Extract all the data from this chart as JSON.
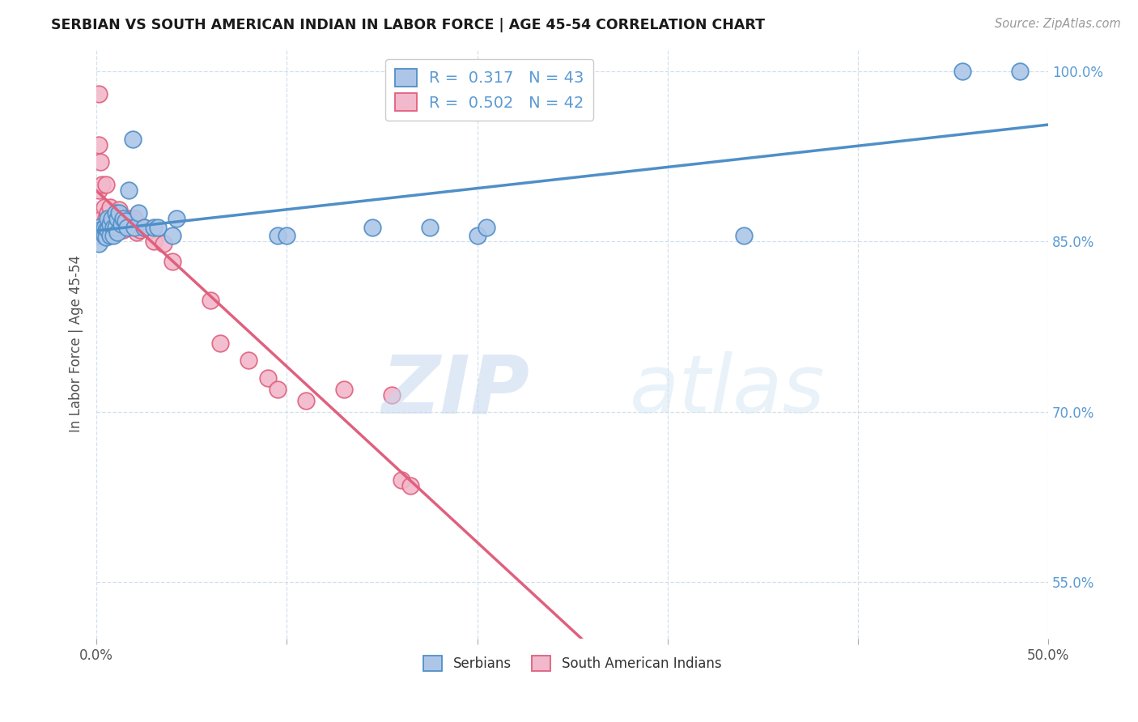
{
  "title": "SERBIAN VS SOUTH AMERICAN INDIAN IN LABOR FORCE | AGE 45-54 CORRELATION CHART",
  "source": "Source: ZipAtlas.com",
  "ylabel": "In Labor Force | Age 45-54",
  "xlim": [
    0.0,
    0.5
  ],
  "ylim": [
    0.5,
    1.02
  ],
  "yticks": [
    0.55,
    0.7,
    0.85,
    1.0
  ],
  "ytick_labels": [
    "55.0%",
    "70.0%",
    "85.0%",
    "100.0%"
  ],
  "xticks": [
    0.0,
    0.1,
    0.2,
    0.3,
    0.4,
    0.5
  ],
  "xtick_labels": [
    "0.0%",
    "",
    "",
    "",
    "",
    "50.0%"
  ],
  "legend_serbian_R": "0.317",
  "legend_serbian_N": "43",
  "legend_sai_R": "0.502",
  "legend_sai_N": "42",
  "serbian_color": "#adc6e8",
  "sai_color": "#f2b8cb",
  "serbian_line_color": "#4f8fc7",
  "sai_line_color": "#e0607e",
  "watermark_zip": "ZIP",
  "watermark_atlas": "atlas",
  "serbian_x": [
    0.001,
    0.001,
    0.001,
    0.002,
    0.003,
    0.004,
    0.004,
    0.005,
    0.005,
    0.006,
    0.006,
    0.007,
    0.007,
    0.008,
    0.009,
    0.009,
    0.01,
    0.01,
    0.011,
    0.011,
    0.012,
    0.013,
    0.014,
    0.015,
    0.016,
    0.017,
    0.019,
    0.02,
    0.022,
    0.025,
    0.03,
    0.032,
    0.04,
    0.042,
    0.095,
    0.1,
    0.145,
    0.175,
    0.2,
    0.205,
    0.34,
    0.455,
    0.485
  ],
  "serbian_y": [
    0.862,
    0.855,
    0.848,
    0.86,
    0.858,
    0.862,
    0.855,
    0.86,
    0.854,
    0.87,
    0.86,
    0.865,
    0.855,
    0.87,
    0.862,
    0.855,
    0.875,
    0.862,
    0.87,
    0.858,
    0.875,
    0.865,
    0.87,
    0.868,
    0.862,
    0.895,
    0.94,
    0.862,
    0.875,
    0.862,
    0.862,
    0.862,
    0.855,
    0.87,
    0.855,
    0.855,
    0.862,
    0.862,
    0.855,
    0.862,
    0.855,
    1.0,
    1.0
  ],
  "sai_x": [
    0.001,
    0.001,
    0.001,
    0.002,
    0.003,
    0.003,
    0.004,
    0.005,
    0.005,
    0.006,
    0.006,
    0.007,
    0.008,
    0.009,
    0.01,
    0.011,
    0.012,
    0.013,
    0.014,
    0.015,
    0.016,
    0.017,
    0.018,
    0.019,
    0.02,
    0.021,
    0.023,
    0.025,
    0.028,
    0.03,
    0.035,
    0.04,
    0.06,
    0.065,
    0.08,
    0.09,
    0.095,
    0.11,
    0.13,
    0.155,
    0.16,
    0.165
  ],
  "sai_y": [
    0.98,
    0.935,
    0.895,
    0.92,
    0.9,
    0.87,
    0.88,
    0.9,
    0.87,
    0.875,
    0.86,
    0.88,
    0.865,
    0.87,
    0.865,
    0.87,
    0.878,
    0.865,
    0.86,
    0.87,
    0.865,
    0.87,
    0.862,
    0.868,
    0.87,
    0.858,
    0.86,
    0.862,
    0.86,
    0.85,
    0.848,
    0.832,
    0.798,
    0.76,
    0.745,
    0.73,
    0.72,
    0.71,
    0.72,
    0.715,
    0.64,
    0.635
  ]
}
